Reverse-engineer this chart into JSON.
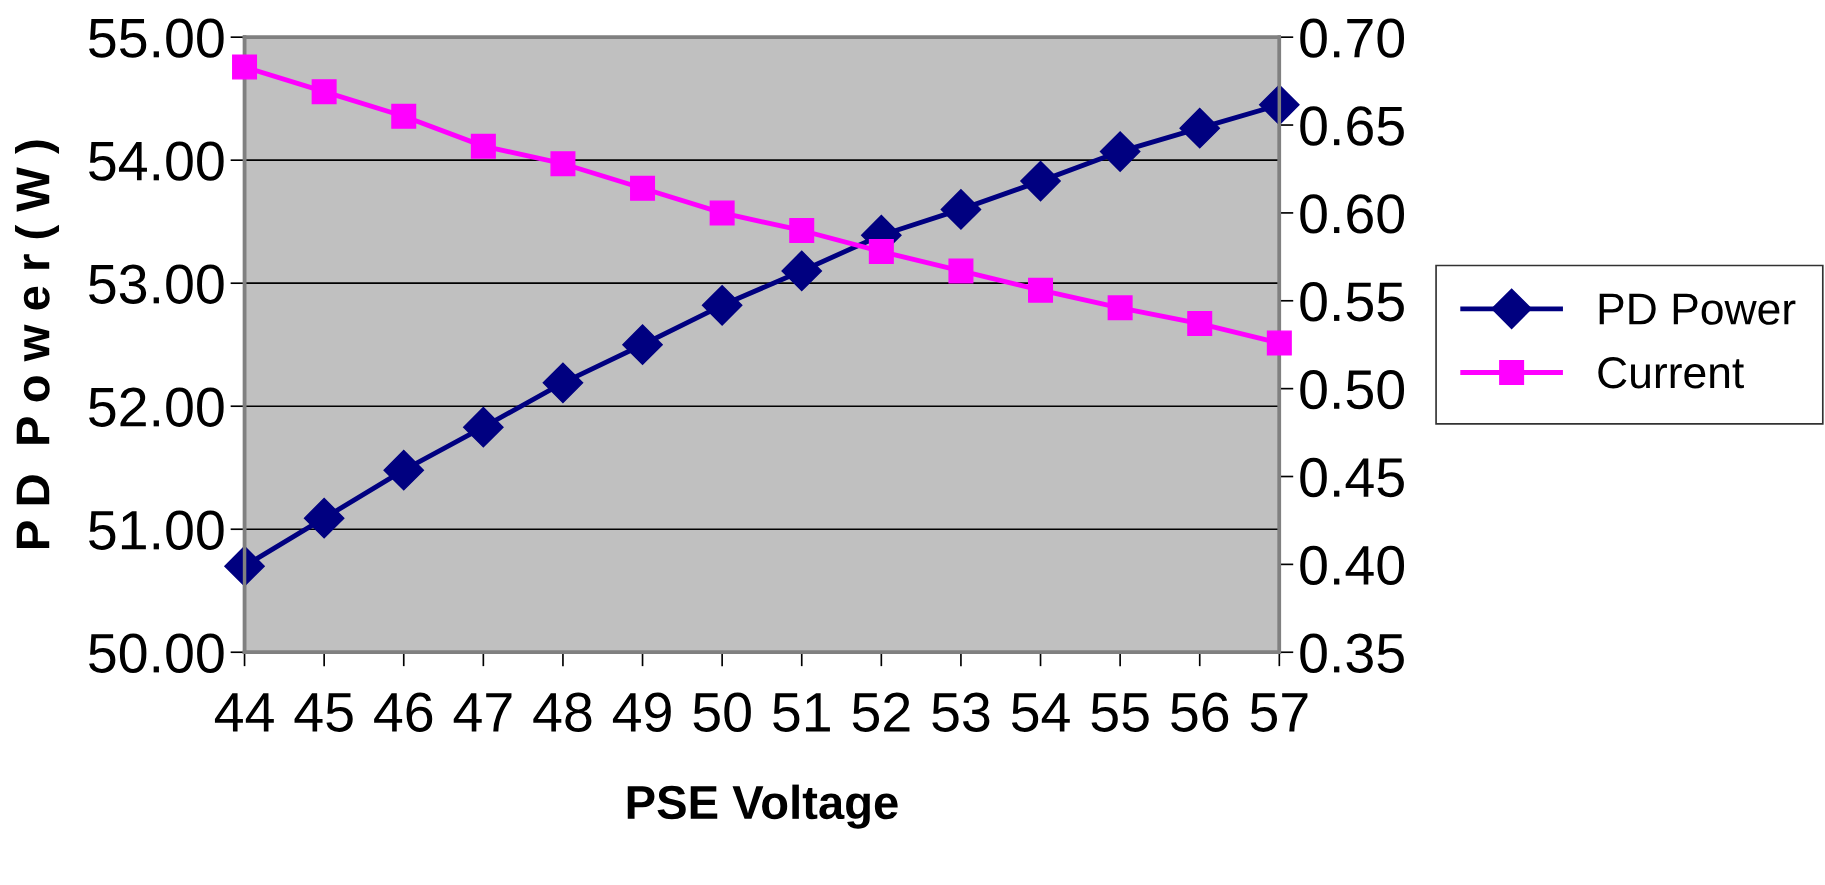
{
  "chart_data": {
    "type": "line",
    "xlabel": "PSE Voltage",
    "ylabel": "P D  P o w e r ( W )",
    "x": [
      44,
      45,
      46,
      47,
      48,
      49,
      50,
      51,
      52,
      53,
      54,
      55,
      56,
      57
    ],
    "xlim": [
      44,
      57
    ],
    "xticks": [
      44,
      45,
      46,
      47,
      48,
      49,
      50,
      51,
      52,
      53,
      54,
      55,
      56,
      57
    ],
    "ylim": [
      50,
      55
    ],
    "yticks": [
      {
        "value": 50,
        "label": "50.00"
      },
      {
        "value": 51,
        "label": "51.00"
      },
      {
        "value": 52,
        "label": "52.00"
      },
      {
        "value": 53,
        "label": "53.00"
      },
      {
        "value": 54,
        "label": "54.00"
      },
      {
        "value": 55,
        "label": "55.00"
      }
    ],
    "y2lim": [
      0.35,
      0.7
    ],
    "y2ticks": [
      {
        "value": 0.35,
        "label": "0.35"
      },
      {
        "value": 0.4,
        "label": "0.40"
      },
      {
        "value": 0.45,
        "label": "0.45"
      },
      {
        "value": 0.5,
        "label": "0.50"
      },
      {
        "value": 0.55,
        "label": "0.55"
      },
      {
        "value": 0.6,
        "label": "0.60"
      },
      {
        "value": 0.65,
        "label": "0.65"
      },
      {
        "value": 0.7,
        "label": "0.70"
      }
    ],
    "grid": "y",
    "legend": "right",
    "line_style": "solid",
    "series": [
      {
        "name": "PD Power",
        "color": "#000080",
        "marker": "diamond",
        "values": [
          50.7,
          51.09,
          51.48,
          51.83,
          52.19,
          52.5,
          52.82,
          53.1,
          53.39,
          53.6,
          53.83,
          54.07,
          54.26,
          54.45
        ]
      },
      {
        "name": "Current",
        "color": "#ff00ff",
        "marker": "square",
        "axis": "y2",
        "values": [
          0.683,
          0.669,
          0.655,
          0.638,
          0.628,
          0.614,
          0.6,
          0.59,
          0.578,
          0.567,
          0.556,
          0.546,
          0.537,
          0.526
        ]
      }
    ]
  }
}
